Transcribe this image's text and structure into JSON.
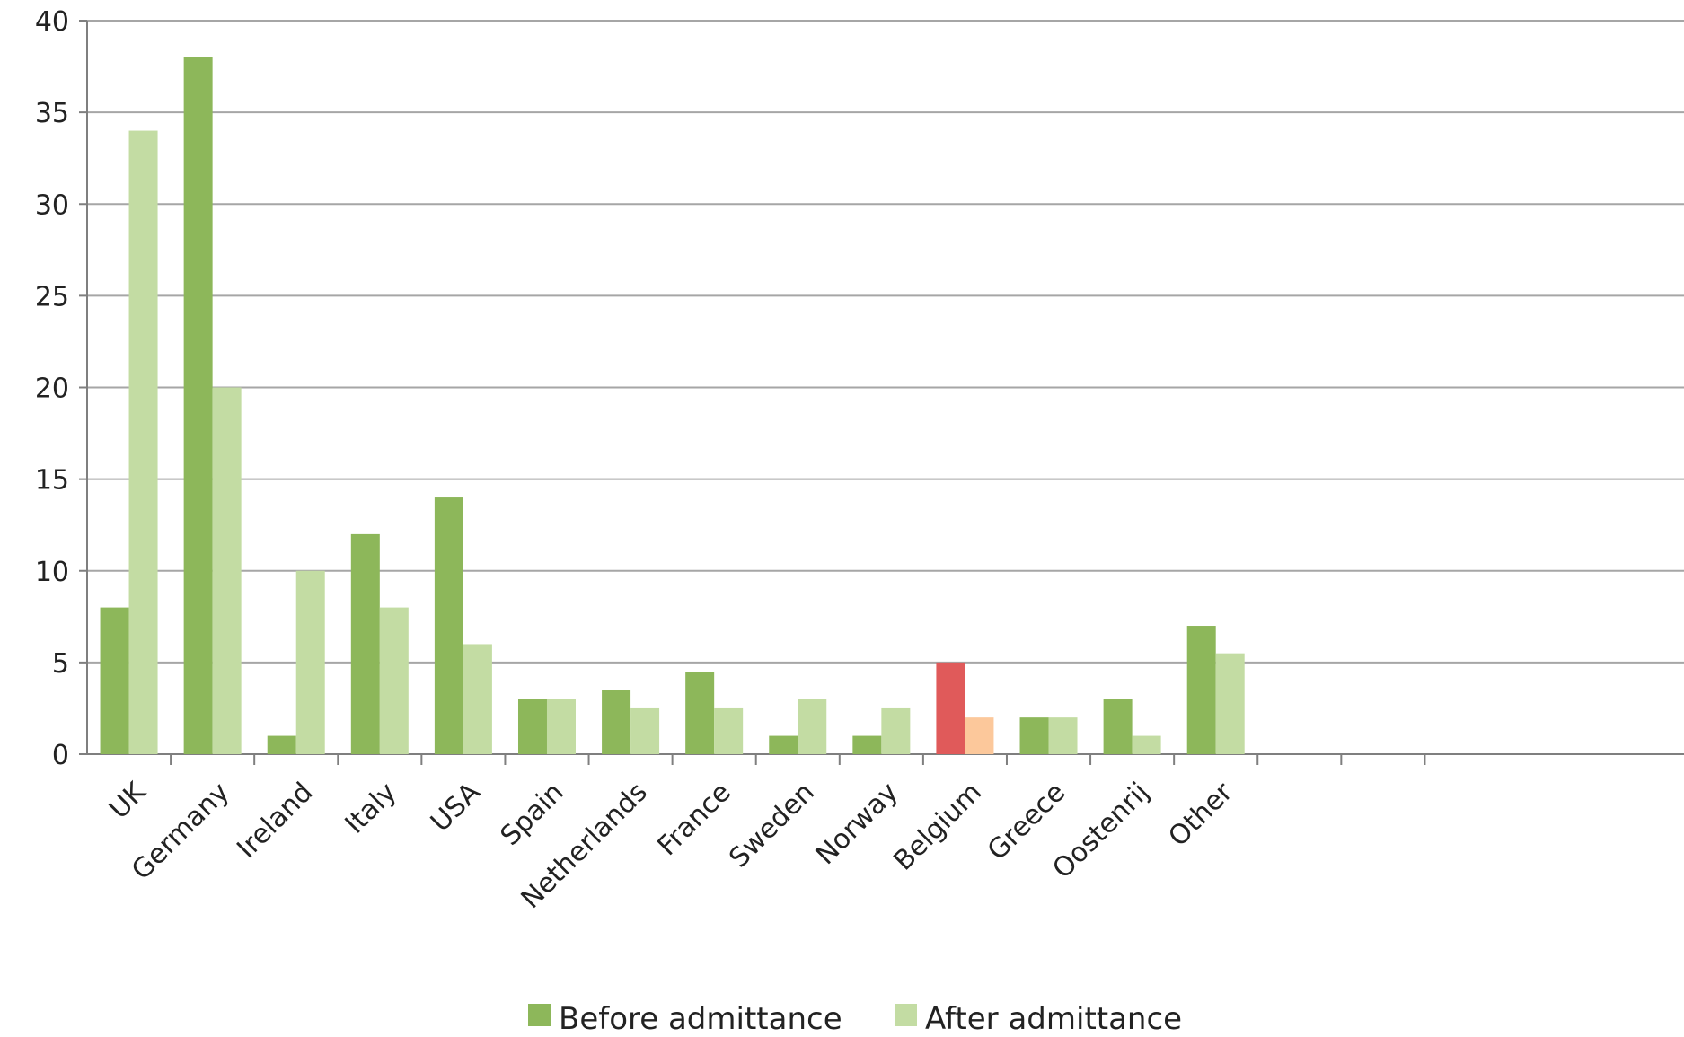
{
  "chart_data": {
    "type": "bar",
    "categories": [
      "UK",
      "Germany",
      "Ireland",
      "Italy",
      "USA",
      "Spain",
      "Netherlands",
      "France",
      "Sweden",
      "Norway",
      "Belgium",
      "Greece",
      "Oostenrij",
      "Other",
      "",
      ""
    ],
    "series": [
      {
        "name": "Before admittance",
        "color": "#8db75a",
        "values": [
          8,
          38,
          1,
          12,
          14,
          3,
          3.5,
          4.5,
          1,
          1,
          5,
          2,
          3,
          7,
          null,
          null
        ]
      },
      {
        "name": "After admittance",
        "color": "#c3dca3",
        "values": [
          34,
          20,
          10,
          8,
          6,
          3,
          2.5,
          2.5,
          3,
          2.5,
          2,
          2,
          1,
          5.5,
          null,
          null
        ]
      }
    ],
    "highlight": {
      "category": "Belgium",
      "before_color": "#e05a5a",
      "after_color": "#fcc89b"
    },
    "ylim": [
      0,
      40
    ],
    "yticks": [
      0,
      5,
      10,
      15,
      20,
      25,
      30,
      35,
      40
    ],
    "grid": true,
    "legend_position": "bottom"
  }
}
